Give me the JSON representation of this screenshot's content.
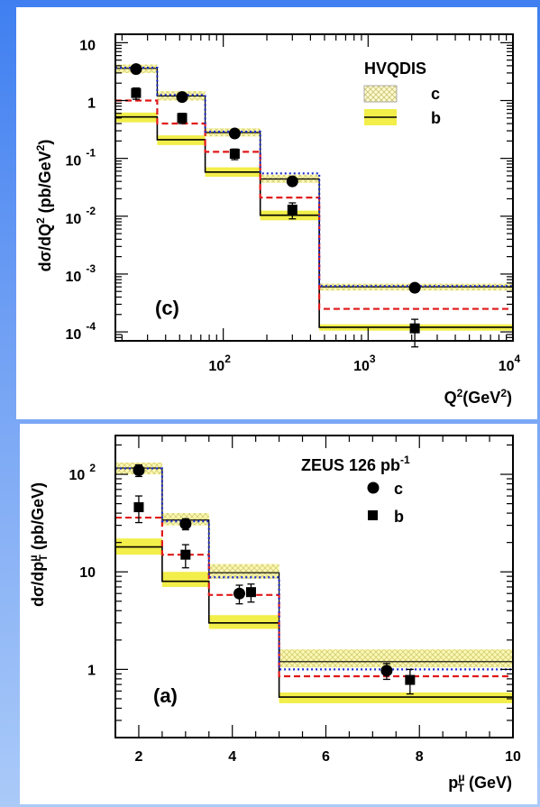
{
  "chart_data": [
    {
      "type": "step",
      "panel_label": "(c)",
      "ylabel_main": "dσ/dQ",
      "ylabel_sup": "2",
      "ylabel_tail": " (pb/GeV",
      "ylabel_tail_sup": "2",
      "ylabel_close": ")",
      "xlabel_main": "Q",
      "xlabel_sup": "2",
      "xlabel_tail": "(GeV",
      "xlabel_tail_sup": "2",
      "xlabel_close": ")",
      "xscale": "log",
      "yscale": "log",
      "xlim": [
        18,
        10000
      ],
      "ylim": [
        7e-05,
        14
      ],
      "x_ticks": [
        {
          "base": "10",
          "exp": "2",
          "value": 100
        },
        {
          "base": "10",
          "exp": "3",
          "value": 1000
        },
        {
          "base": "10",
          "exp": "4",
          "value": 10000
        }
      ],
      "y_ticks": [
        {
          "base": "10",
          "exp": "",
          "value": 10
        },
        {
          "base": "1",
          "exp": "",
          "value": 1
        },
        {
          "base": "10",
          "exp": "-1",
          "value": 0.1
        },
        {
          "base": "10",
          "exp": "-2",
          "value": 0.01
        },
        {
          "base": "10",
          "exp": "-3",
          "value": 0.001
        },
        {
          "base": "10",
          "exp": "-4",
          "value": 0.0001
        }
      ],
      "legend": {
        "title": "HVQDIS",
        "entries": [
          {
            "label": "c",
            "style": "hatched"
          },
          {
            "label": "b",
            "style": "solid-yellow"
          }
        ]
      },
      "bins": [
        18,
        35,
        75,
        180,
        460,
        10000
      ],
      "series": [
        {
          "name": "c",
          "band_low": [
            3.0,
            1.0,
            0.24,
            0.038,
            0.00052
          ],
          "band_high": [
            4.2,
            1.45,
            0.33,
            0.052,
            0.00068
          ],
          "central": [
            3.6,
            1.2,
            0.28,
            0.044,
            0.0006
          ],
          "dotted": [
            3.7,
            1.25,
            0.29,
            0.055,
            0.00062
          ]
        },
        {
          "name": "b",
          "band_low": [
            0.42,
            0.17,
            0.048,
            0.0085,
            0.000105
          ],
          "band_high": [
            0.62,
            0.25,
            0.07,
            0.0125,
            0.000135
          ],
          "central": [
            0.52,
            0.21,
            0.058,
            0.0104,
            0.00012
          ],
          "dashed": [
            1.0,
            0.4,
            0.13,
            0.021,
            0.00025
          ]
        }
      ],
      "data_c": {
        "x": [
          25,
          52,
          120,
          300,
          2100
        ],
        "y": [
          3.5,
          1.15,
          0.27,
          0.04,
          0.00058
        ],
        "err_low": [
          0.3,
          0.1,
          0.03,
          0.004,
          5e-05
        ],
        "err_high": [
          0.3,
          0.1,
          0.03,
          0.004,
          5e-05
        ]
      },
      "data_b": {
        "x": [
          25,
          52,
          120,
          300,
          2100
        ],
        "y": [
          1.35,
          0.5,
          0.12,
          0.013,
          0.000115
        ],
        "err_low": [
          0.3,
          0.1,
          0.025,
          0.004,
          6e-05
        ],
        "err_high": [
          0.3,
          0.1,
          0.025,
          0.004,
          5e-05
        ]
      },
      "colors": {
        "band": "#f2ee4a",
        "hatch_bg": "#fffbd0",
        "hatch_line": "#c9c47a",
        "dotted": "#1a2bd0",
        "dashed": "#e01818",
        "frame": "#000000"
      }
    },
    {
      "type": "step",
      "panel_label": "(a)",
      "ylabel_main": "dσ/dp",
      "ylabel_sub": "T",
      "ylabel_sup": "μ",
      "ylabel_tail": " (pb/GeV)",
      "xlabel_main": "p",
      "xlabel_sub": "T",
      "xlabel_sup": "μ",
      "xlabel_tail": " (GeV)",
      "xscale": "linear",
      "yscale": "log",
      "xlim": [
        1.5,
        10
      ],
      "ylim": [
        0.2,
        250
      ],
      "x_ticks": [
        {
          "label": "2",
          "value": 2
        },
        {
          "label": "4",
          "value": 4
        },
        {
          "label": "6",
          "value": 6
        },
        {
          "label": "8",
          "value": 8
        },
        {
          "label": "10",
          "value": 10
        }
      ],
      "y_ticks": [
        {
          "base": "10",
          "exp": "2",
          "value": 100
        },
        {
          "base": "10",
          "exp": "",
          "value": 10
        },
        {
          "base": "1",
          "exp": "",
          "value": 1
        }
      ],
      "legend": {
        "title": "ZEUS 126 pb",
        "title_sup": "-1",
        "entries": [
          {
            "label": "c",
            "style": "circle"
          },
          {
            "label": "b",
            "style": "square"
          }
        ]
      },
      "bins": [
        1.5,
        2.5,
        3.5,
        5,
        10
      ],
      "series": [
        {
          "name": "c",
          "band_low": [
            100,
            30,
            8.5,
            1.05
          ],
          "band_high": [
            132,
            40,
            12,
            1.6
          ],
          "central": [
            116,
            34,
            9.8,
            1.2
          ],
          "dotted": [
            115,
            33,
            8.8,
            1.0
          ]
        },
        {
          "name": "b",
          "band_low": [
            15,
            7,
            2.6,
            0.45
          ],
          "band_high": [
            22,
            10,
            3.6,
            0.58
          ],
          "central": [
            18,
            8,
            3.0,
            0.52
          ],
          "dashed": [
            36,
            15,
            5.8,
            0.85
          ]
        }
      ],
      "data_c": {
        "x": [
          2.0,
          3.0,
          4.15,
          7.3
        ],
        "y": [
          110,
          31,
          6,
          0.97
        ],
        "err_low": [
          15,
          4,
          1.3,
          0.18
        ],
        "err_high": [
          15,
          4,
          1.3,
          0.18
        ]
      },
      "data_b": {
        "x": [
          2.0,
          3.0,
          4.4,
          7.8
        ],
        "y": [
          46,
          15,
          6.2,
          0.78
        ],
        "err_low": [
          14,
          4,
          1.3,
          0.22
        ],
        "err_high": [
          14,
          4,
          1.3,
          0.22
        ]
      },
      "colors": {
        "band": "#f2ee4a",
        "hatch_bg": "#fffbd0",
        "hatch_line": "#c9c47a",
        "dotted": "#1a2bd0",
        "dashed": "#e01818",
        "frame": "#000000"
      }
    }
  ]
}
